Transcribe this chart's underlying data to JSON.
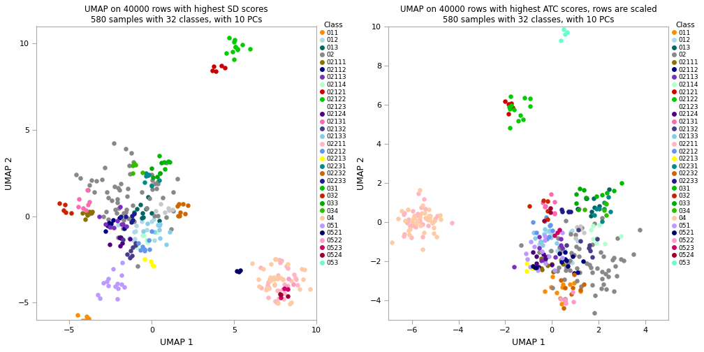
{
  "title1": "UMAP on 40000 rows with highest SD scores\n580 samples with 32 classes, with 10 PCs",
  "title2": "UMAP on 40000 rows with highest ATC scores, rows are scaled\n580 samples with 32 classes, with 10 PCs",
  "xlabel": "UMAP 1",
  "ylabel": "UMAP 2",
  "classes": [
    "011",
    "012",
    "013",
    "02",
    "02111",
    "02112",
    "02113",
    "02114",
    "02121",
    "02122",
    "02123",
    "02124",
    "02131",
    "02132",
    "02133",
    "02211",
    "02212",
    "02213",
    "02231",
    "02232",
    "02233",
    "031",
    "032",
    "033",
    "034",
    "04",
    "051",
    "0521",
    "0522",
    "0523",
    "0524",
    "053"
  ],
  "colors": [
    "#FF8C00",
    "#ADD8E6",
    "#006666",
    "#888888",
    "#8B7000",
    "#000080",
    "#7B2FBE",
    "#AFFFCF",
    "#CC0000",
    "#00CC00",
    "#C8C8C8",
    "#4B0082",
    "#FF69B4",
    "#483D8B",
    "#87CEEB",
    "#FFB6C1",
    "#6495ED",
    "#FFFF00",
    "#008B8B",
    "#CC6600",
    "#1C1C8C",
    "#00BB00",
    "#CC2200",
    "#00AA00",
    "#33BB00",
    "#FFCBA4",
    "#BB99FF",
    "#000066",
    "#FF99CC",
    "#CC0066",
    "#990033",
    "#66FFCC"
  ],
  "plot1_xlim": [
    -7,
    10
  ],
  "plot1_ylim": [
    -6,
    11
  ],
  "plot1_xticks": [
    -5,
    0,
    5,
    10
  ],
  "plot1_yticks": [
    -5,
    0,
    5,
    10
  ],
  "plot2_xlim": [
    -7,
    5
  ],
  "plot2_ylim": [
    -5,
    10
  ],
  "plot2_xticks": [
    -6,
    -4,
    -2,
    0,
    2,
    4
  ],
  "plot2_yticks": [
    -4,
    -2,
    0,
    2,
    4,
    6,
    8,
    10
  ],
  "bg_color": "#FFFFFF",
  "panel_bg": "#FFFFFF",
  "spine_color": "#AAAAAA"
}
